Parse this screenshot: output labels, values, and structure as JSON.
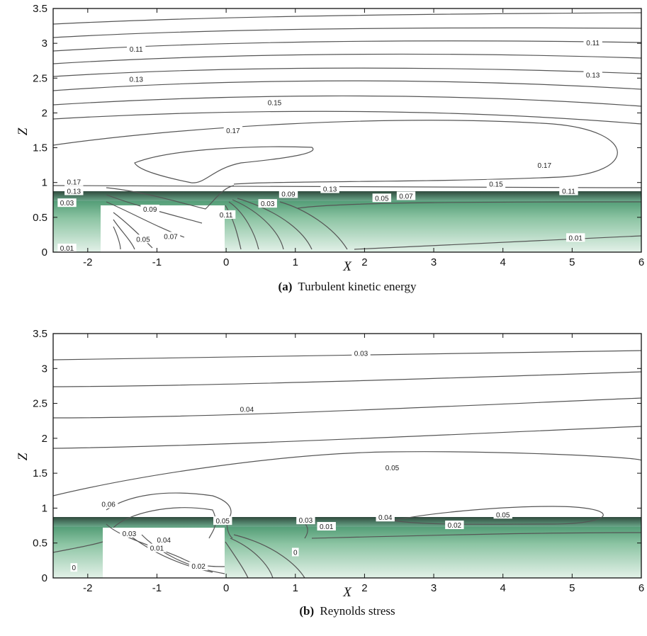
{
  "chart_data": [
    {
      "type": "contour",
      "caption_letter": "(a)",
      "caption_text": "Turbulent kinetic energy",
      "xlabel": "X",
      "ylabel": "Z",
      "xlim": [
        -2.5,
        6
      ],
      "ylim": [
        0,
        3.5
      ],
      "xticks": [
        -2,
        -1,
        0,
        1,
        2,
        3,
        4,
        5,
        6
      ],
      "yticks": [
        0,
        0.5,
        1,
        1.5,
        2,
        2.5,
        3,
        3.5
      ],
      "contour_labels": [
        {
          "text": "0.11",
          "x": -1.3,
          "z": 2.91
        },
        {
          "text": "0.11",
          "x": 5.3,
          "z": 3.0
        },
        {
          "text": "0.13",
          "x": -1.3,
          "z": 2.48
        },
        {
          "text": "0.13",
          "x": 5.3,
          "z": 2.54
        },
        {
          "text": "0.15",
          "x": 0.7,
          "z": 2.14
        },
        {
          "text": "0.17",
          "x": 0.1,
          "z": 1.74
        },
        {
          "text": "0.17",
          "x": 4.6,
          "z": 1.24
        },
        {
          "text": "0.17",
          "x": -2.2,
          "z": 1.0
        },
        {
          "text": "0.13",
          "x": -2.2,
          "z": 0.87
        },
        {
          "text": "0.03",
          "x": -2.3,
          "z": 0.7
        },
        {
          "text": "0.09",
          "x": -1.1,
          "z": 0.61
        },
        {
          "text": "0.05",
          "x": -1.2,
          "z": 0.18
        },
        {
          "text": "0.07",
          "x": -0.8,
          "z": 0.22
        },
        {
          "text": "0.11",
          "x": 0.0,
          "z": 0.53
        },
        {
          "text": "0.03",
          "x": 0.6,
          "z": 0.69
        },
        {
          "text": "0.09",
          "x": 0.9,
          "z": 0.83
        },
        {
          "text": "0.13",
          "x": 1.5,
          "z": 0.9
        },
        {
          "text": "0.05",
          "x": 2.25,
          "z": 0.77
        },
        {
          "text": "0.07",
          "x": 2.6,
          "z": 0.8
        },
        {
          "text": "0.15",
          "x": 3.9,
          "z": 0.97
        },
        {
          "text": "0.11",
          "x": 4.95,
          "z": 0.87
        },
        {
          "text": "0.01",
          "x": 5.05,
          "z": 0.2
        },
        {
          "text": "0.01",
          "x": -2.3,
          "z": 0.05
        }
      ]
    },
    {
      "type": "contour",
      "caption_letter": "(b)",
      "caption_text": "Reynolds stress",
      "xlabel": "X",
      "ylabel": "Z",
      "xlim": [
        -2.5,
        6
      ],
      "ylim": [
        0,
        3.5
      ],
      "xticks": [
        -2,
        -1,
        0,
        1,
        2,
        3,
        4,
        5,
        6
      ],
      "yticks": [
        0,
        0.5,
        1,
        1.5,
        2,
        2.5,
        3,
        3.5
      ],
      "contour_labels": [
        {
          "text": "0.03",
          "x": 1.95,
          "z": 3.21
        },
        {
          "text": "0.04",
          "x": 0.3,
          "z": 2.41
        },
        {
          "text": "0.05",
          "x": 2.4,
          "z": 1.57
        },
        {
          "text": "0.06",
          "x": -1.7,
          "z": 1.05
        },
        {
          "text": "0.03",
          "x": -1.4,
          "z": 0.63
        },
        {
          "text": "0.04",
          "x": -0.9,
          "z": 0.54
        },
        {
          "text": "0.01",
          "x": -1.0,
          "z": 0.42
        },
        {
          "text": "0.02",
          "x": -0.4,
          "z": 0.16
        },
        {
          "text": "0.05",
          "x": -0.05,
          "z": 0.81
        },
        {
          "text": "0.03",
          "x": 1.15,
          "z": 0.82
        },
        {
          "text": "0.01",
          "x": 1.45,
          "z": 0.73
        },
        {
          "text": "0.04",
          "x": 2.3,
          "z": 0.86
        },
        {
          "text": "0.02",
          "x": 3.3,
          "z": 0.75
        },
        {
          "text": "0.05",
          "x": 4.0,
          "z": 0.9
        },
        {
          "text": "0",
          "x": 1.0,
          "z": 0.36
        },
        {
          "text": "0",
          "x": -2.2,
          "z": 0.14
        }
      ]
    }
  ]
}
